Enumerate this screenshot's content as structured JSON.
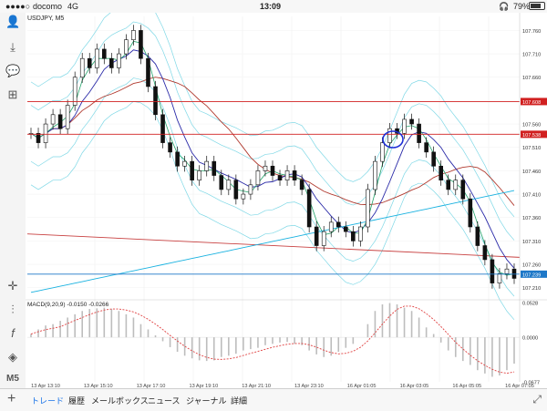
{
  "status_bar": {
    "carrier": "docomo",
    "network": "4G",
    "time": "13:09",
    "battery": "79%"
  },
  "chart_data": {
    "type": "line",
    "title": "USDJPY, M5",
    "price_axis_ticks": [
      "107.760",
      "107.710",
      "107.660",
      "107.608",
      "107.560",
      "107.538",
      "107.510",
      "107.460",
      "107.410",
      "107.360",
      "107.310",
      "107.260",
      "107.239",
      "107.210"
    ],
    "price_range": [
      107.19,
      107.79
    ],
    "horizontal_lines": [
      {
        "label": "107.608",
        "value": 107.608,
        "color": "#d12020"
      },
      {
        "label": "107.538",
        "value": 107.538,
        "color": "#d12020"
      },
      {
        "label": "107.239",
        "value": 107.239,
        "color": "#1e78c8"
      }
    ],
    "x_tick_labels": [
      "13 Apr 13:10",
      "13 Apr 15:10",
      "13 Apr 17:10",
      "13 Apr 19:10",
      "13 Apr 21:10",
      "13 Apr 23:10",
      "16 Apr 01:05",
      "16 Apr 03:05",
      "16 Apr 05:05",
      "16 Apr 07:05"
    ],
    "close_series": [
      107.54,
      107.52,
      107.56,
      107.58,
      107.55,
      107.6,
      107.66,
      107.7,
      107.68,
      107.72,
      107.7,
      107.68,
      107.71,
      107.74,
      107.76,
      107.7,
      107.64,
      107.58,
      107.52,
      107.5,
      107.47,
      107.48,
      107.44,
      107.46,
      107.48,
      107.45,
      107.42,
      107.44,
      107.4,
      107.41,
      107.43,
      107.46,
      107.47,
      107.45,
      107.44,
      107.46,
      107.44,
      107.42,
      107.34,
      107.3,
      107.33,
      107.35,
      107.34,
      107.33,
      107.31,
      107.34,
      107.42,
      107.48,
      107.52,
      107.55,
      107.54,
      107.57,
      107.56,
      107.52,
      107.5,
      107.47,
      107.44,
      107.42,
      107.44,
      107.4,
      107.34,
      107.3,
      107.27,
      107.22,
      107.24,
      107.25,
      107.23
    ],
    "macd": {
      "label": "MACD(9,20,9) -0.0150 -0.0266",
      "ticks": [
        "0.0528",
        "0.0000",
        "-0.0677"
      ],
      "range": [
        -0.0677,
        0.0528
      ],
      "histogram": [
        0.005,
        0.012,
        0.018,
        0.02,
        0.025,
        0.03,
        0.035,
        0.04,
        0.043,
        0.044,
        0.045,
        0.043,
        0.04,
        0.035,
        0.03,
        0.02,
        0.012,
        0.003,
        -0.006,
        -0.015,
        -0.022,
        -0.028,
        -0.032,
        -0.035,
        -0.036,
        -0.035,
        -0.03,
        -0.028,
        -0.025,
        -0.02,
        -0.018,
        -0.016,
        -0.012,
        -0.01,
        -0.008,
        -0.007,
        -0.01,
        -0.012,
        -0.02,
        -0.026,
        -0.03,
        -0.028,
        -0.022,
        -0.016,
        -0.01,
        0.0,
        0.02,
        0.04,
        0.05,
        0.052,
        0.05,
        0.045,
        0.04,
        0.03,
        0.015,
        0.005,
        -0.008,
        -0.02,
        -0.03,
        -0.036,
        -0.042,
        -0.05,
        -0.055,
        -0.06,
        -0.058,
        -0.05,
        -0.04
      ]
    }
  },
  "sidebar": {
    "icons": [
      "user-icon",
      "crosshair-icon",
      "chat-icon",
      "add-icon",
      "move-icon",
      "candle-type-icon",
      "function-icon",
      "shapes-icon"
    ],
    "timeframe": "M5"
  },
  "tab_bar": {
    "tabs": [
      "トレード",
      "履歴",
      "メールボックス",
      "ニュース",
      "ジャーナル",
      "詳細"
    ],
    "active_tab": "トレード"
  }
}
